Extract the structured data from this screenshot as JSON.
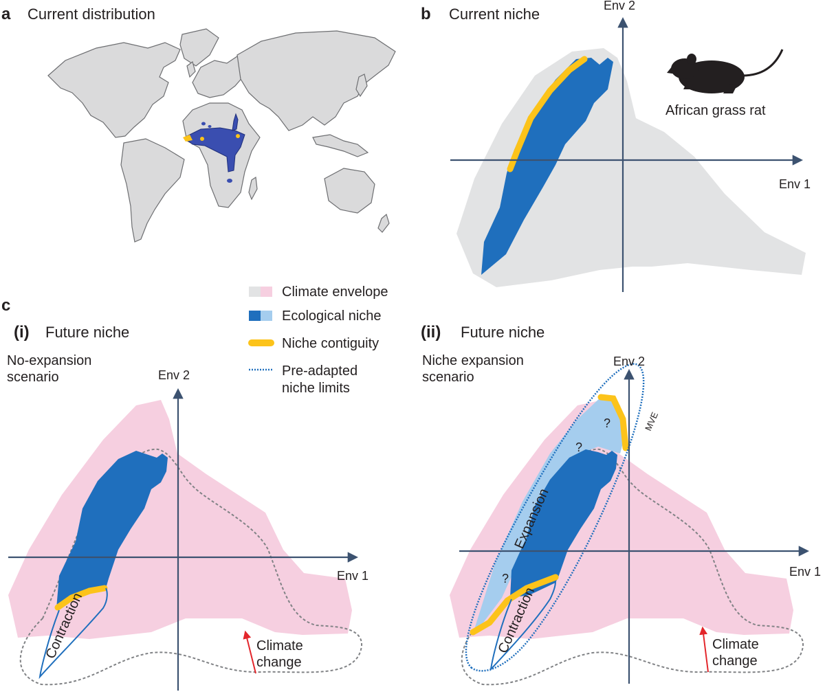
{
  "panel_a": {
    "letter": "a",
    "title": "Current distribution"
  },
  "panel_b": {
    "letter": "b",
    "title": "Current niche",
    "axis_y": "Env 2",
    "axis_x": "Env 1",
    "species": "African grass rat"
  },
  "panel_c": {
    "letter": "c",
    "legend": {
      "climate": "Climate envelope",
      "niche": "Ecological niche",
      "contiguity": "Niche contiguity",
      "preadapted_1": "Pre-adapted",
      "preadapted_2": "niche limits"
    },
    "sub_i": {
      "tag": "(i)",
      "title": "Future niche",
      "scenario_1": "No-expansion",
      "scenario_2": "scenario",
      "axis_y": "Env 2",
      "axis_x": "Env 1",
      "contraction": "Contraction",
      "climate_1": "Climate",
      "climate_2": "change"
    },
    "sub_ii": {
      "tag": "(ii)",
      "title": "Future niche",
      "scenario_1": "Niche expansion",
      "scenario_2": "scenario",
      "axis_y": "Env 2",
      "axis_x": "Env 1",
      "expansion": "Expansion",
      "contraction": "Contraction",
      "mve": "MVE",
      "unknown": "?",
      "climate_1": "Climate",
      "climate_2": "change"
    }
  },
  "colors": {
    "climate_current": "#e2e3e4",
    "climate_future": "#f6cfe0",
    "niche": "#1f6fbd",
    "niche_light": "#a5cdee",
    "contiguity": "#fcc31a",
    "axis": "#3c5270",
    "arrow": "#e3262b",
    "map_land": "#dadadb",
    "map_range": "#3a4eb0"
  }
}
